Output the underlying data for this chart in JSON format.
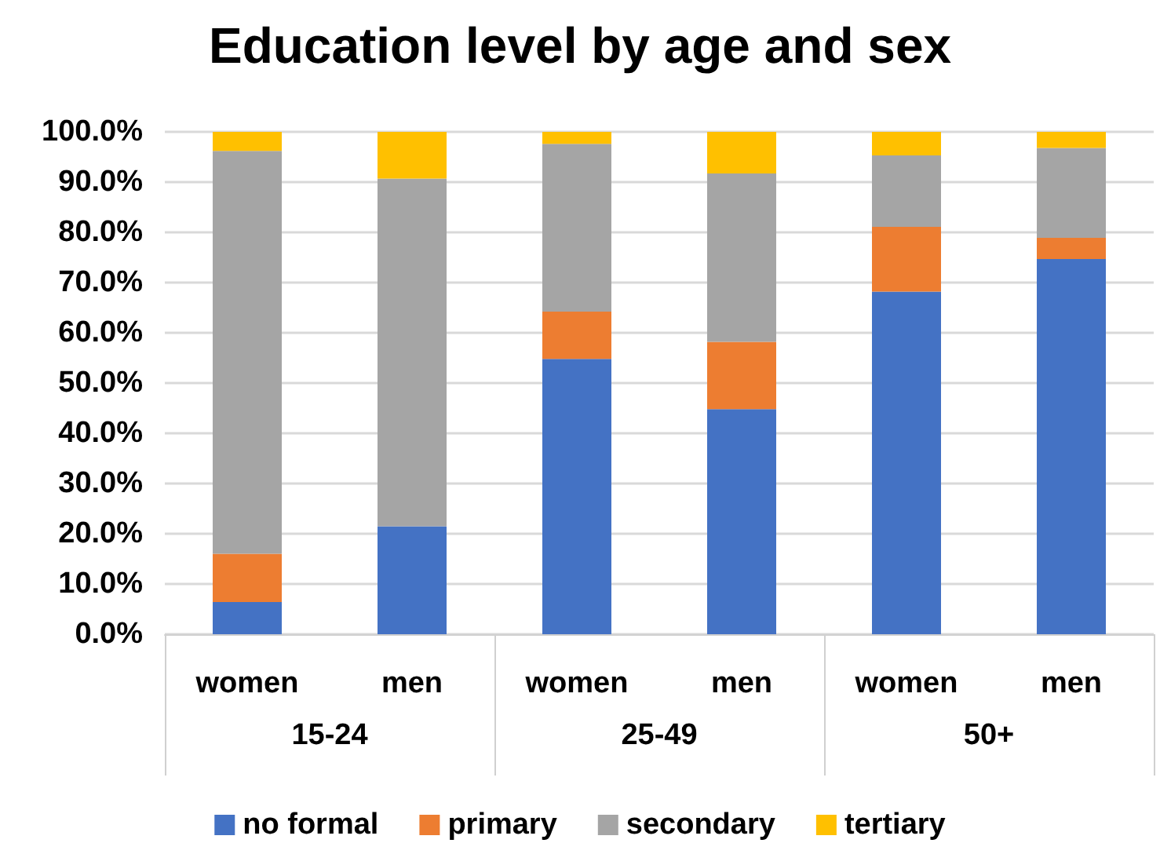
{
  "chart_data": {
    "type": "bar",
    "title": "Education level by age and sex",
    "stacked": true,
    "categories": [
      "women",
      "men",
      "women",
      "men",
      "women",
      "men"
    ],
    "annotations": [
      "15-24",
      "25-49",
      "50+"
    ],
    "series": [
      {
        "name": "no formal",
        "color": "#4472c4",
        "values": [
          6.4,
          21.5,
          54.8,
          44.8,
          68.2,
          74.7
        ]
      },
      {
        "name": "primary",
        "color": "#ed7d31",
        "values": [
          9.6,
          0,
          9.4,
          13.4,
          12.9,
          4.2
        ]
      },
      {
        "name": "secondary",
        "color": "#a5a5a5",
        "values": [
          80.2,
          69.2,
          33.4,
          33.5,
          14.2,
          17.9
        ]
      },
      {
        "name": "tertiary",
        "color": "#ffc000",
        "values": [
          3.8,
          9.3,
          2.4,
          8.3,
          4.7,
          3.2
        ]
      }
    ],
    "ylim": [
      0,
      100
    ],
    "yticks": [
      {
        "value": 0,
        "label": "0.0%"
      },
      {
        "value": 10,
        "label": "10.0%"
      },
      {
        "value": 20,
        "label": "20.0%"
      },
      {
        "value": 30,
        "label": "30.0%"
      },
      {
        "value": 40,
        "label": "40.0%"
      },
      {
        "value": 50,
        "label": "50.0%"
      },
      {
        "value": 60,
        "label": "60.0%"
      },
      {
        "value": 70,
        "label": "70.0%"
      },
      {
        "value": 80,
        "label": "80.0%"
      },
      {
        "value": 90,
        "label": "90.0%"
      },
      {
        "value": 100,
        "label": "100.0%"
      }
    ],
    "grid": "y",
    "legend": "bottom"
  }
}
